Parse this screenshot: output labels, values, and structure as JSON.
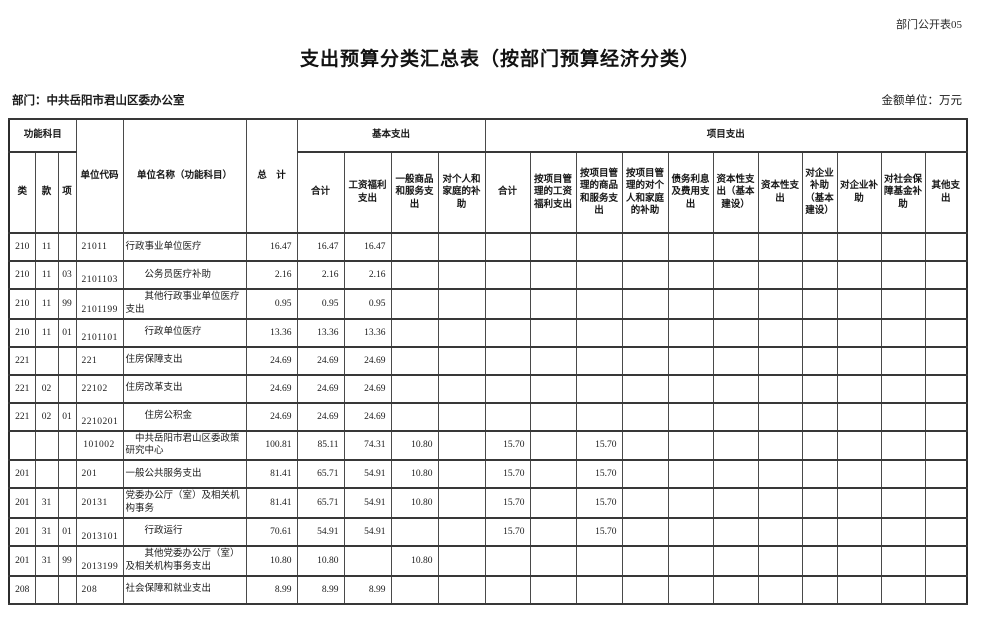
{
  "meta": {
    "sheet_label": "部门公开表05",
    "title": "支出预算分类汇总表（按部门预算经济分类）",
    "department_label": "部门：中共岳阳市君山区委办公室",
    "amount_unit_label": "金额单位：万元"
  },
  "colors": {
    "background": "#ffffff",
    "text": "#1a1a1a",
    "border": "#383838"
  },
  "table": {
    "header": {
      "func_group": "功能科目",
      "func_cols": [
        "类",
        "款",
        "项"
      ],
      "unit_code": "单位代码",
      "unit_name": "单位名称（功能科目）",
      "grand_total": "总　计",
      "basic_group": "基本支出",
      "basic_cols": [
        "合计",
        "工资福利支出",
        "一般商品和服务支出",
        "对个人和家庭的补助"
      ],
      "project_group": "项目支出",
      "project_cols": [
        "合计",
        "按项目管理的工资福利支出",
        "按项目管理的商品和服务支出",
        "按项目管理的对个人和家庭的补助",
        "债务利息及费用支出",
        "资本性支出（基本建设）",
        "资本性支出",
        "对企业补助（基本建设）",
        "对企业补助",
        "对社会保障基金补助",
        "其他支出"
      ]
    },
    "rows": [
      {
        "lei": "210",
        "kuan": "11",
        "xiang": "",
        "code": "21011",
        "code_pos": "top",
        "name": "行政事业单位医疗",
        "indent": 0,
        "values": [
          "16.47",
          "16.47",
          "16.47",
          "",
          "",
          "",
          "",
          "",
          "",
          "",
          "",
          "",
          "",
          "",
          "",
          ""
        ]
      },
      {
        "lei": "210",
        "kuan": "11",
        "xiang": "03",
        "code": "2101103",
        "code_pos": "low",
        "name": "公务员医疗补助",
        "indent": 2,
        "values": [
          "2.16",
          "2.16",
          "2.16",
          "",
          "",
          "",
          "",
          "",
          "",
          "",
          "",
          "",
          "",
          "",
          "",
          ""
        ]
      },
      {
        "lei": "210",
        "kuan": "11",
        "xiang": "99",
        "code": "2101199",
        "code_pos": "low",
        "name": "其他行政事业单位医疗支出",
        "indent": 2,
        "values": [
          "0.95",
          "0.95",
          "0.95",
          "",
          "",
          "",
          "",
          "",
          "",
          "",
          "",
          "",
          "",
          "",
          "",
          ""
        ]
      },
      {
        "lei": "210",
        "kuan": "11",
        "xiang": "01",
        "code": "2101101",
        "code_pos": "low",
        "name": "行政单位医疗",
        "indent": 2,
        "values": [
          "13.36",
          "13.36",
          "13.36",
          "",
          "",
          "",
          "",
          "",
          "",
          "",
          "",
          "",
          "",
          "",
          "",
          ""
        ]
      },
      {
        "lei": "221",
        "kuan": "",
        "xiang": "",
        "code": "221",
        "code_pos": "top",
        "name": "住房保障支出",
        "indent": 0,
        "values": [
          "24.69",
          "24.69",
          "24.69",
          "",
          "",
          "",
          "",
          "",
          "",
          "",
          "",
          "",
          "",
          "",
          "",
          ""
        ]
      },
      {
        "lei": "221",
        "kuan": "02",
        "xiang": "",
        "code": "22102",
        "code_pos": "top",
        "name": "住房改革支出",
        "indent": 0,
        "values": [
          "24.69",
          "24.69",
          "24.69",
          "",
          "",
          "",
          "",
          "",
          "",
          "",
          "",
          "",
          "",
          "",
          "",
          ""
        ]
      },
      {
        "lei": "221",
        "kuan": "02",
        "xiang": "01",
        "code": "2210201",
        "code_pos": "low",
        "name": "住房公积金",
        "indent": 2,
        "values": [
          "24.69",
          "24.69",
          "24.69",
          "",
          "",
          "",
          "",
          "",
          "",
          "",
          "",
          "",
          "",
          "",
          "",
          ""
        ]
      },
      {
        "lei": "",
        "kuan": "",
        "xiang": "",
        "code": "101002",
        "code_pos": "center",
        "name": "中共岳阳市君山区委政策研究中心",
        "indent": 1,
        "values": [
          "100.81",
          "85.11",
          "74.31",
          "10.80",
          "",
          "15.70",
          "",
          "15.70",
          "",
          "",
          "",
          "",
          "",
          "",
          "",
          ""
        ]
      },
      {
        "lei": "201",
        "kuan": "",
        "xiang": "",
        "code": "201",
        "code_pos": "top",
        "name": "一般公共服务支出",
        "indent": 0,
        "values": [
          "81.41",
          "65.71",
          "54.91",
          "10.80",
          "",
          "15.70",
          "",
          "15.70",
          "",
          "",
          "",
          "",
          "",
          "",
          "",
          ""
        ]
      },
      {
        "lei": "201",
        "kuan": "31",
        "xiang": "",
        "code": "20131",
        "code_pos": "top",
        "name": "党委办公厅（室）及相关机构事务",
        "indent": 0,
        "values": [
          "81.41",
          "65.71",
          "54.91",
          "10.80",
          "",
          "15.70",
          "",
          "15.70",
          "",
          "",
          "",
          "",
          "",
          "",
          "",
          ""
        ]
      },
      {
        "lei": "201",
        "kuan": "31",
        "xiang": "01",
        "code": "2013101",
        "code_pos": "low",
        "name": "行政运行",
        "indent": 2,
        "values": [
          "70.61",
          "54.91",
          "54.91",
          "",
          "",
          "15.70",
          "",
          "15.70",
          "",
          "",
          "",
          "",
          "",
          "",
          "",
          ""
        ]
      },
      {
        "lei": "201",
        "kuan": "31",
        "xiang": "99",
        "code": "2013199",
        "code_pos": "low",
        "name": "其他党委办公厅（室）及相关机构事务支出",
        "indent": 2,
        "values": [
          "10.80",
          "10.80",
          "",
          "10.80",
          "",
          "",
          "",
          "",
          "",
          "",
          "",
          "",
          "",
          "",
          "",
          ""
        ]
      },
      {
        "lei": "208",
        "kuan": "",
        "xiang": "",
        "code": "208",
        "code_pos": "top",
        "name": "社会保障和就业支出",
        "indent": 0,
        "values": [
          "8.99",
          "8.99",
          "8.99",
          "",
          "",
          "",
          "",
          "",
          "",
          "",
          "",
          "",
          "",
          "",
          "",
          ""
        ]
      }
    ]
  }
}
